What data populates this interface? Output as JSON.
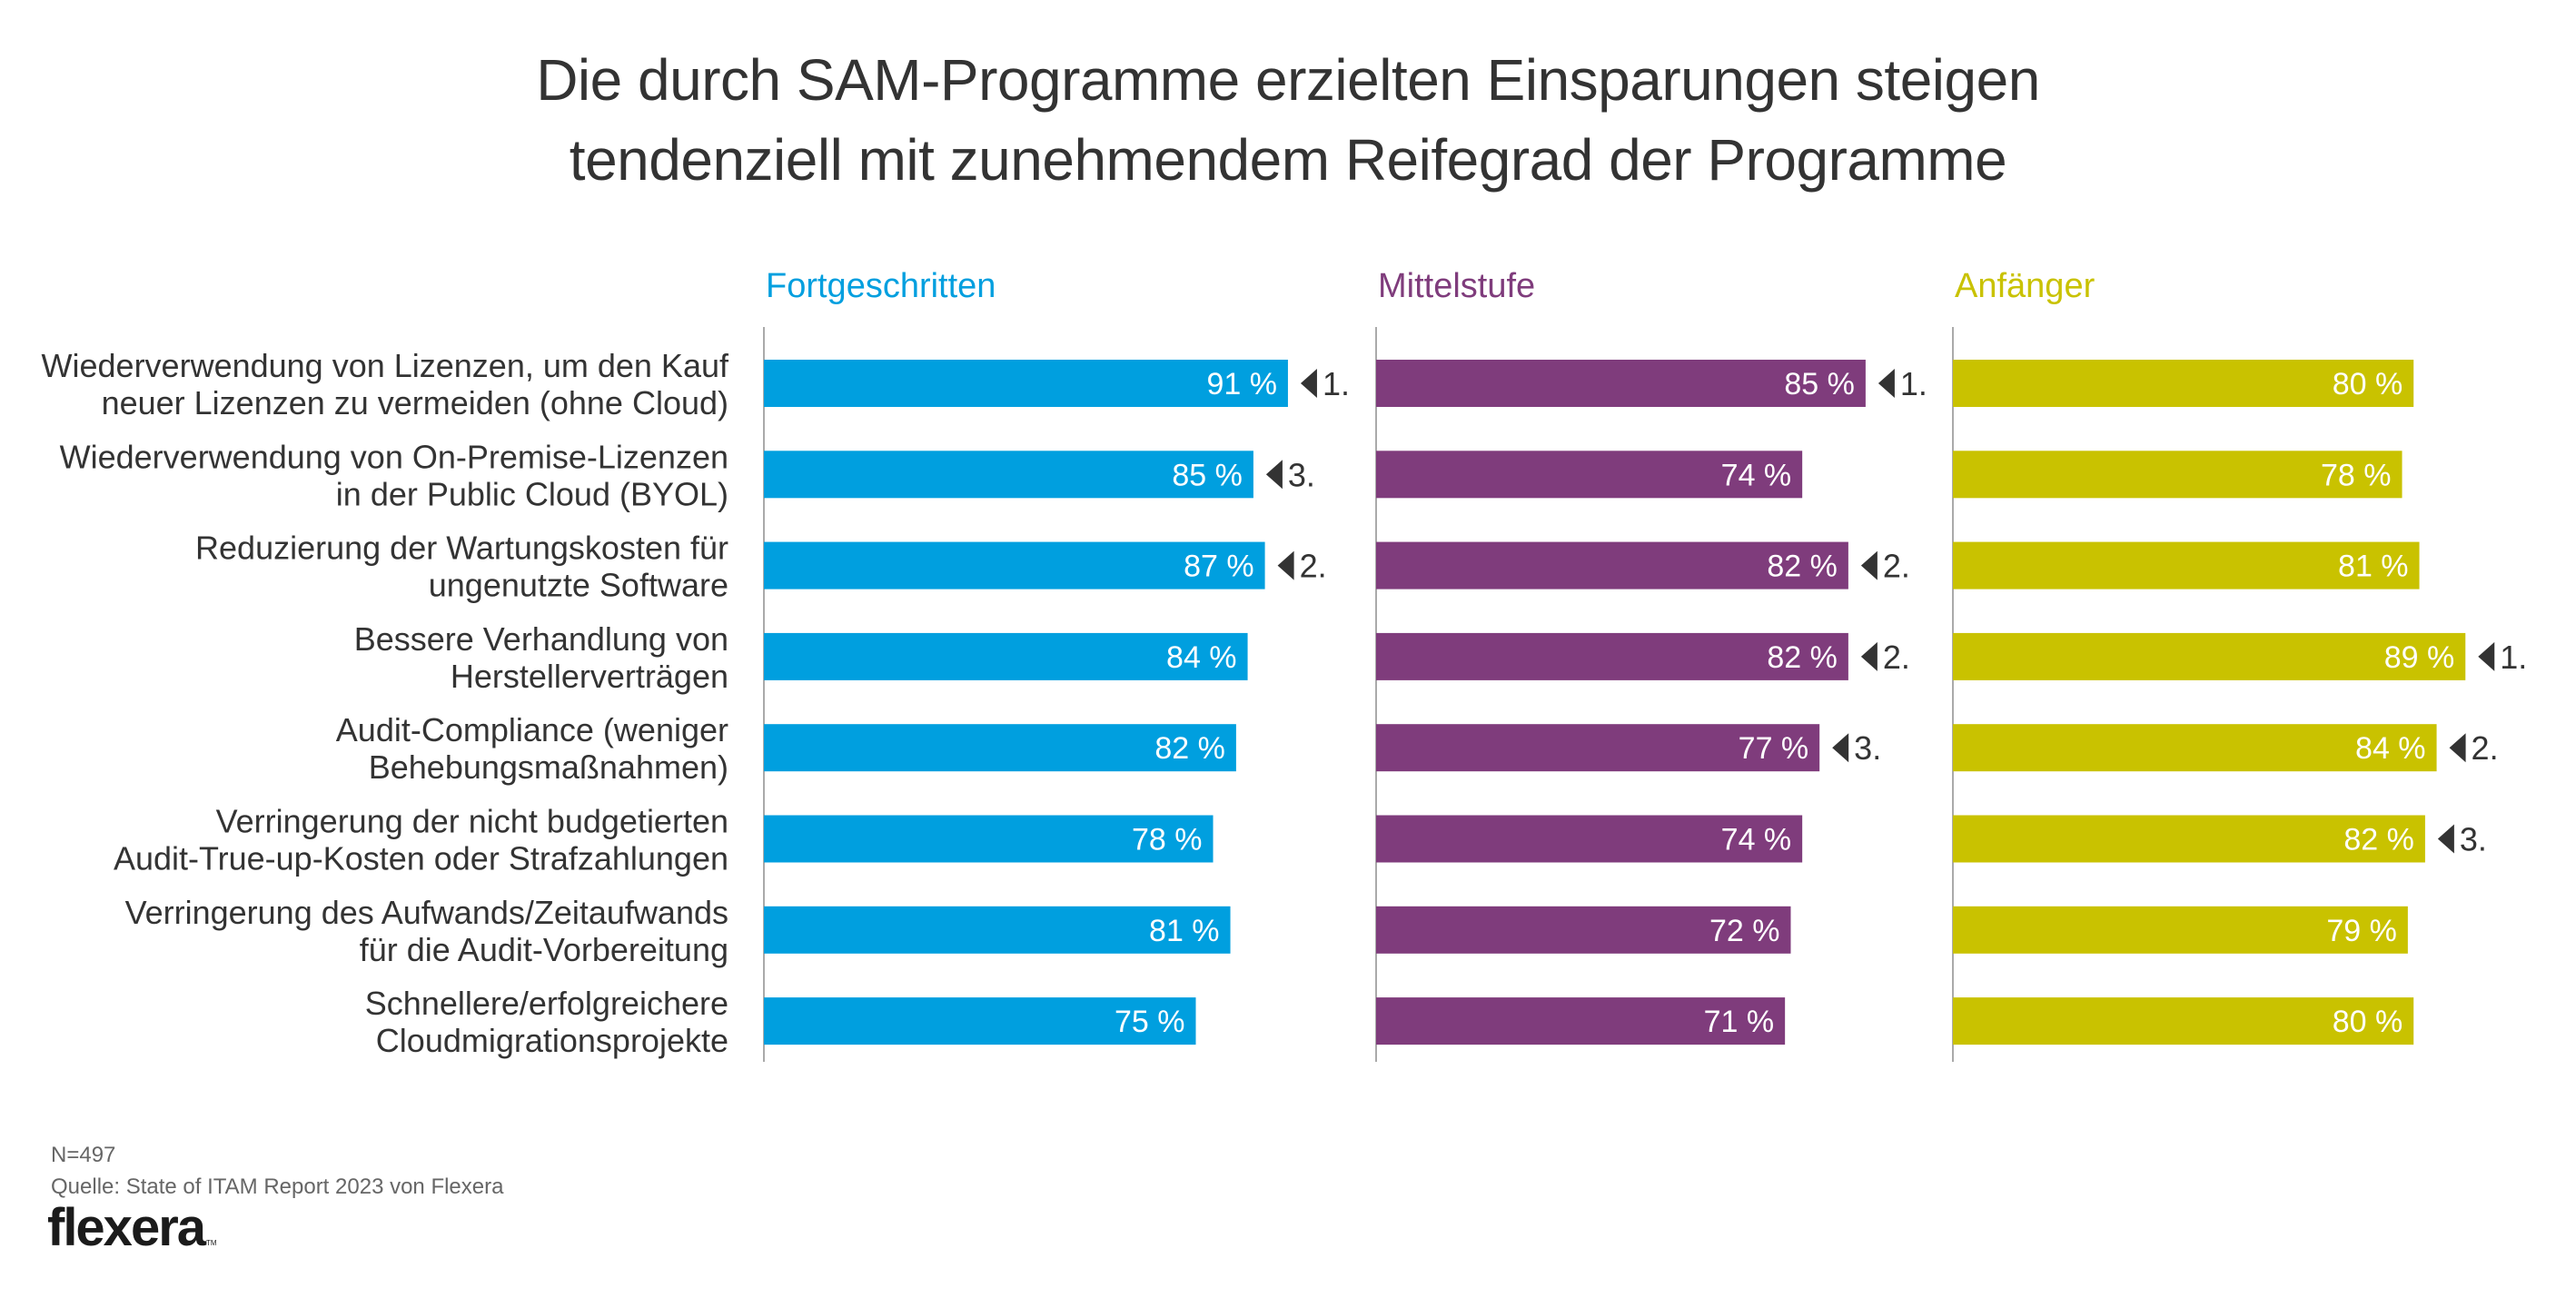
{
  "title": {
    "line1": "Die durch SAM-Programme erzielten Einsparungen steigen",
    "line2": "tendenziell mit zunehmendem Reifegrad der Programme"
  },
  "footer": {
    "sample": "N=497",
    "source": "Quelle: State of ITAM Report 2023 von Flexera",
    "logo": "flexera",
    "logo_tm": "TM"
  },
  "chart_data": {
    "type": "bar",
    "orientation": "horizontal",
    "title": "Die durch SAM-Programme erzielten Einsparungen steigen tendenziell mit zunehmendem Reifegrad der Programme",
    "xlabel": "",
    "ylabel": "",
    "xlim": [
      0,
      100
    ],
    "value_suffix": " %",
    "grid": false,
    "categories": [
      [
        "Wiederverwendung von Lizenzen, um den Kauf",
        "neuer Lizenzen zu vermeiden (ohne Cloud)"
      ],
      [
        "Wiederverwendung von On-Premise-Lizenzen",
        "in der Public Cloud (BYOL)"
      ],
      [
        "Reduzierung der Wartungskosten für",
        "ungenutzte Software"
      ],
      [
        "Bessere Verhandlung von",
        "Herstellerverträgen"
      ],
      [
        "Audit-Compliance (weniger",
        "Behebungsmaßnahmen)"
      ],
      [
        "Verringerung der nicht budgetierten",
        "Audit-True-up-Kosten oder Strafzahlungen"
      ],
      [
        "Verringerung des Aufwands/Zeitaufwands",
        "für die Audit-Vorbereitung"
      ],
      [
        "Schnellere/erfolgreichere",
        "Cloudmigrationsprojekte"
      ]
    ],
    "series": [
      {
        "name": "Fortgeschritten",
        "color": "#009FDF",
        "values": [
          91,
          85,
          87,
          84,
          82,
          78,
          81,
          75
        ],
        "ranks": [
          "1.",
          "3.",
          "2.",
          null,
          null,
          null,
          null,
          null
        ]
      },
      {
        "name": "Mittelstufe",
        "color": "#7F3C7C",
        "values": [
          85,
          74,
          82,
          82,
          77,
          74,
          72,
          71
        ],
        "ranks": [
          "1.",
          null,
          "2.",
          "2.",
          "3.",
          null,
          null,
          null
        ]
      },
      {
        "name": "Anfänger",
        "color": "#C9C200",
        "values": [
          80,
          78,
          81,
          89,
          84,
          82,
          79,
          80
        ],
        "ranks": [
          null,
          null,
          null,
          "1.",
          "2.",
          "3.",
          null,
          null
        ]
      }
    ],
    "rank_marker_color": "#333333",
    "axis_color": "#aaaaaa"
  }
}
